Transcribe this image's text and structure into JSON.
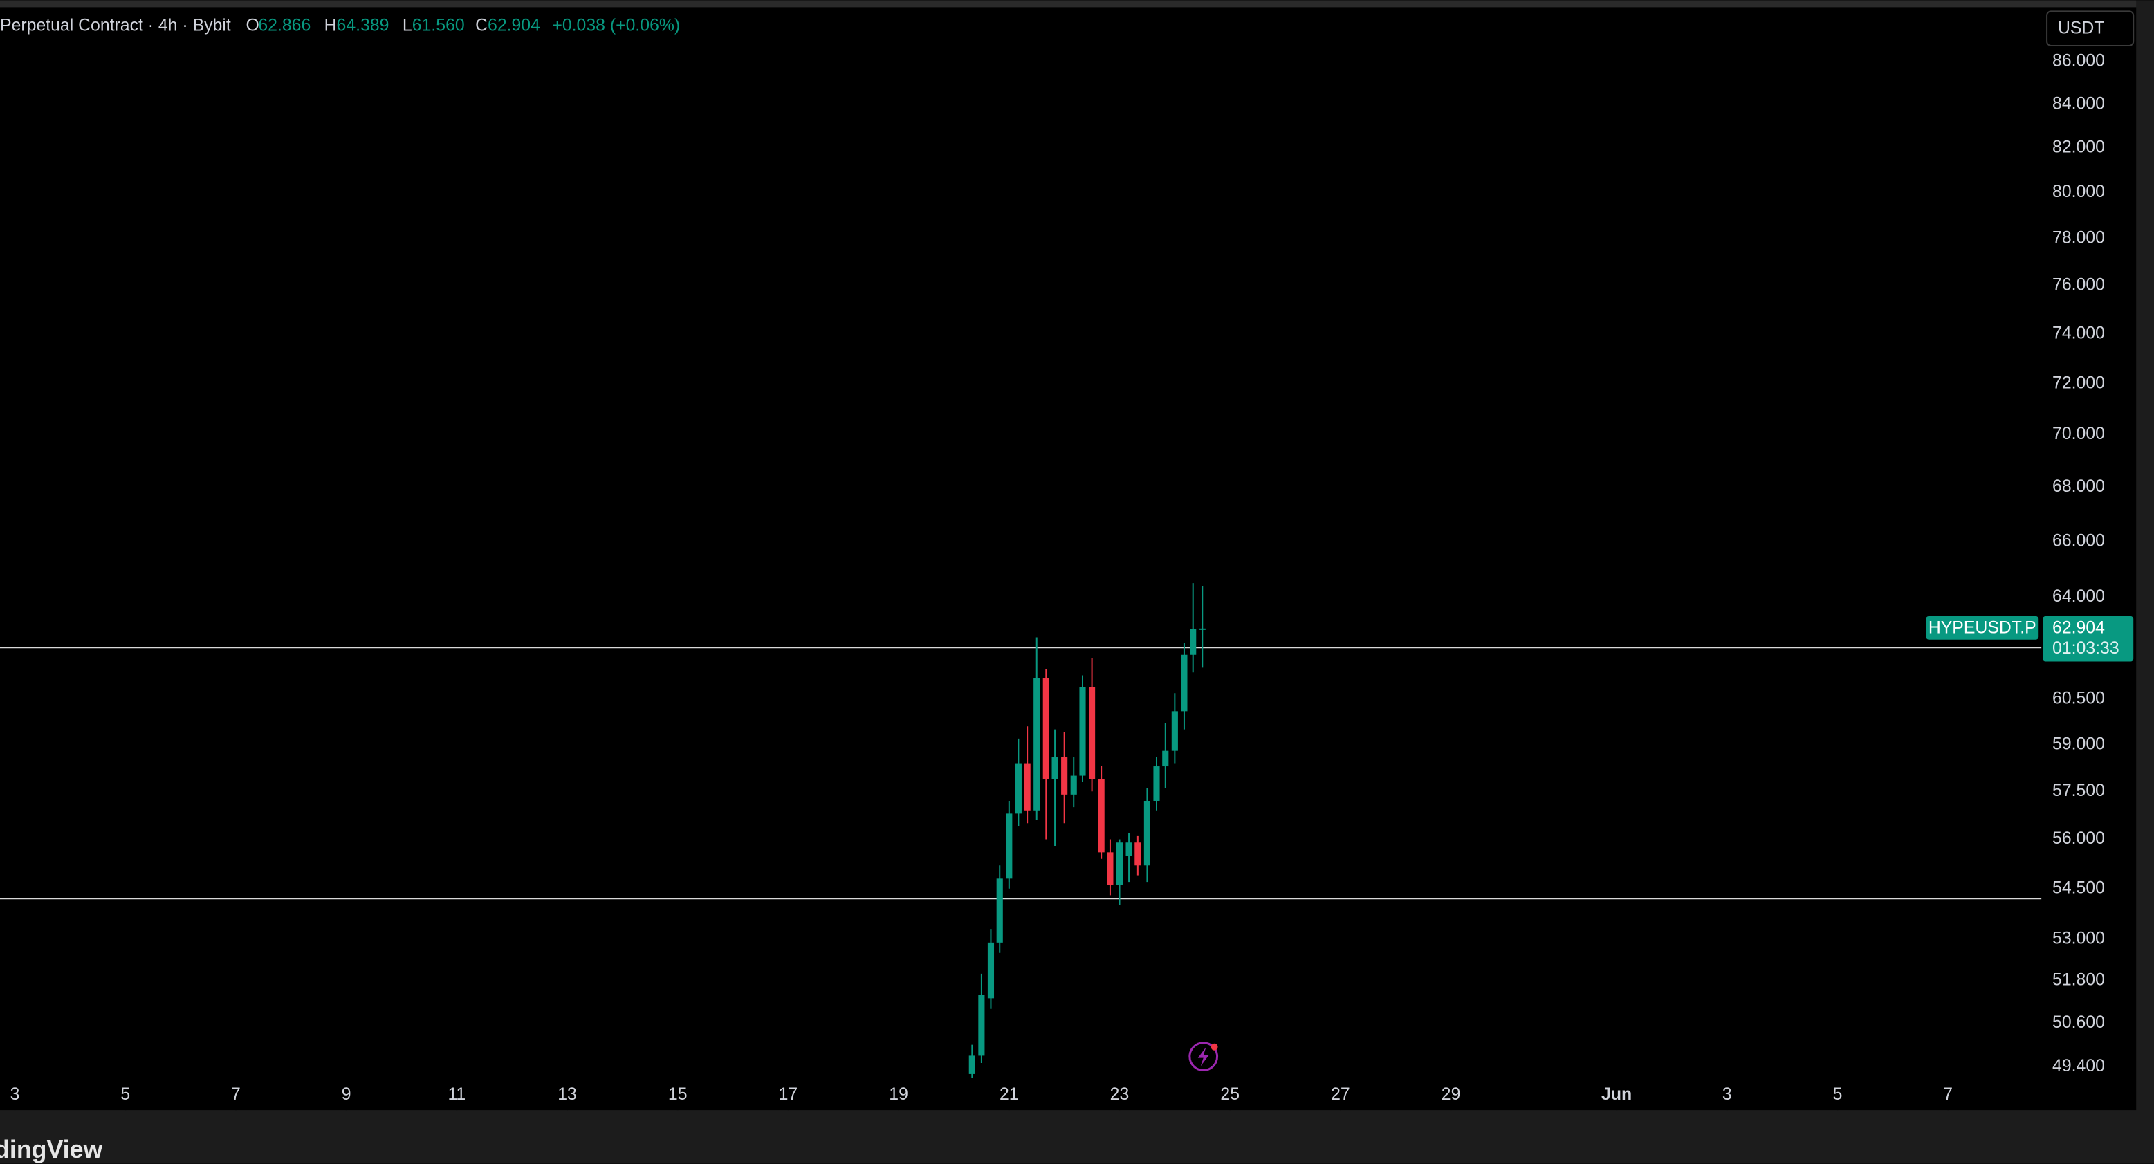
{
  "chart_data": {
    "type": "candlestick",
    "header": {
      "title": "Perpetual Contract · 4h · Bybit",
      "ohlc_letters": [
        "O",
        "H",
        "L",
        "C"
      ],
      "ohlc_values": [
        "62.866",
        "64.389",
        "61.560",
        "62.904"
      ],
      "change": "+0.038 (+0.06%)"
    },
    "currency": "USDT",
    "symbol": "HYPEUSDT.P",
    "last_price": "62.904",
    "countdown": "01:03:33",
    "brand": "dingView",
    "log_scale": true,
    "up_color": "#089981",
    "down_color": "#f23645",
    "x": [
      20.33,
      20.5,
      20.67,
      20.83,
      21.0,
      21.17,
      21.33,
      21.5,
      21.67,
      21.83,
      22.0,
      22.17,
      22.33,
      22.5,
      22.67,
      22.83,
      23.0,
      23.17,
      23.33,
      23.5,
      23.67,
      23.83,
      24.0,
      24.17,
      24.33,
      24.5
    ],
    "open": [
      49.2,
      49.7,
      51.3,
      52.9,
      54.8,
      56.8,
      58.4,
      56.9,
      61.2,
      57.9,
      58.6,
      57.4,
      58.0,
      60.9,
      57.9,
      55.6,
      54.6,
      55.5,
      55.9,
      55.2,
      57.2,
      58.3,
      58.8,
      60.1,
      62.0,
      62.866
    ],
    "high": [
      50.0,
      52.0,
      53.3,
      55.2,
      57.2,
      59.2,
      59.6,
      62.6,
      61.5,
      59.5,
      59.4,
      58.6,
      61.3,
      61.9,
      58.3,
      56.0,
      56.0,
      56.2,
      56.1,
      57.6,
      58.6,
      59.7,
      60.7,
      62.4,
      64.5,
      64.389
    ],
    "low": [
      49.1,
      49.5,
      51.0,
      52.6,
      54.5,
      56.4,
      56.5,
      56.6,
      56.0,
      55.8,
      56.5,
      57.0,
      57.8,
      57.5,
      55.4,
      54.3,
      54.0,
      54.7,
      54.9,
      54.7,
      56.9,
      57.6,
      58.4,
      59.5,
      61.4,
      61.56
    ],
    "close": [
      49.7,
      51.4,
      52.9,
      54.8,
      56.8,
      58.4,
      56.9,
      61.2,
      57.9,
      58.6,
      57.4,
      58.0,
      60.9,
      57.9,
      55.6,
      54.6,
      55.9,
      55.9,
      55.2,
      57.2,
      58.3,
      58.8,
      60.1,
      62.0,
      62.9,
      62.904
    ],
    "hlines": [
      62.25,
      54.2
    ],
    "hline_color": "#d9d9d9",
    "xlim": [
      2.73,
      39.69
    ],
    "xticks": [
      3,
      5,
      7,
      9,
      11,
      13,
      15,
      17,
      19,
      21,
      23,
      25,
      27,
      29,
      {
        "value": 32,
        "label": "Jun"
      },
      {
        "value": 34,
        "label": "3"
      },
      {
        "value": 36,
        "label": "5"
      },
      {
        "value": 38,
        "label": "7"
      }
    ],
    "ylim": [
      48.23,
      88.62
    ],
    "yticks": [
      {
        "value": 86,
        "label": "86.000"
      },
      {
        "value": 84,
        "label": "84.000"
      },
      {
        "value": 82,
        "label": "82.000"
      },
      {
        "value": 80,
        "label": "80.000"
      },
      {
        "value": 78,
        "label": "78.000"
      },
      {
        "value": 76,
        "label": "76.000"
      },
      {
        "value": 74,
        "label": "74.000"
      },
      {
        "value": 72,
        "label": "72.000"
      },
      {
        "value": 70,
        "label": "70.000"
      },
      {
        "value": 68,
        "label": "68.000"
      },
      {
        "value": 66,
        "label": "66.000"
      },
      {
        "value": 64,
        "label": "64.000"
      },
      {
        "value": 60.5,
        "label": "60.500"
      },
      {
        "value": 59,
        "label": "59.000"
      },
      {
        "value": 57.5,
        "label": "57.500"
      },
      {
        "value": 56,
        "label": "56.000"
      },
      {
        "value": 54.5,
        "label": "54.500"
      },
      {
        "value": 53,
        "label": "53.000"
      },
      {
        "value": 51.8,
        "label": "51.800"
      },
      {
        "value": 50.6,
        "label": "50.600"
      },
      {
        "value": 49.4,
        "label": "49.400"
      }
    ]
  }
}
